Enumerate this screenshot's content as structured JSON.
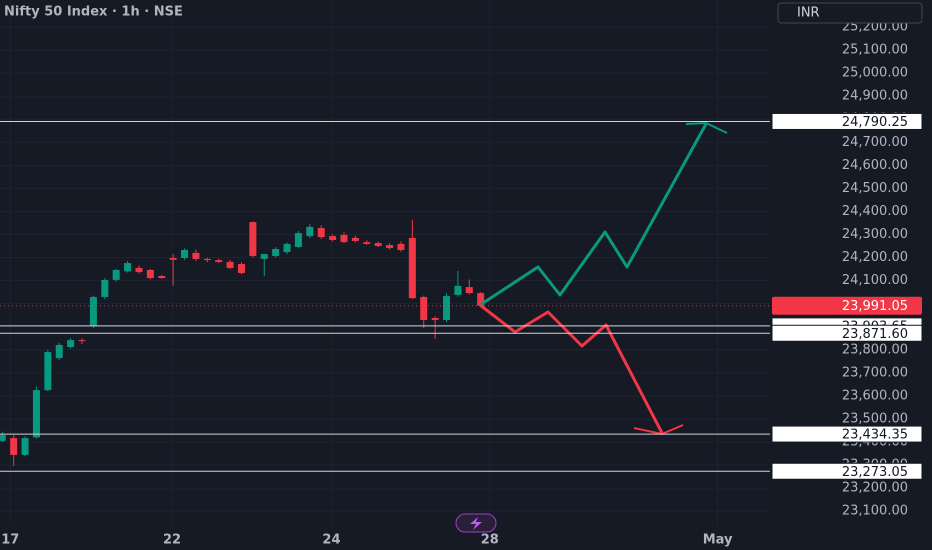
{
  "chart_data": {
    "type": "candlestick",
    "title": "Nifty 50 Index · 1h · NSE",
    "currency": "INR",
    "x": [
      0,
      1,
      2,
      3,
      4,
      5,
      6,
      7,
      8,
      9,
      10,
      11,
      12,
      13,
      14,
      15,
      16,
      17,
      18,
      19,
      20,
      21,
      22,
      23,
      24,
      25,
      26,
      27,
      28,
      29,
      30,
      31,
      32,
      33,
      34,
      35,
      36,
      37,
      38,
      39,
      40,
      41,
      42
    ],
    "open": [
      23405,
      23417,
      23344,
      23420,
      23625,
      23764,
      23812,
      23842,
      23903,
      24029,
      24103,
      24140,
      24155,
      24146,
      24120,
      24198,
      24198,
      24220,
      24194,
      24189,
      24181,
      24172,
      24354,
      24194,
      24207,
      24224,
      24246,
      24293,
      24328,
      24293,
      24298,
      24285,
      24267,
      24263,
      24254,
      24259,
      24285,
      24029,
      23938,
      23929,
      24038,
      24072,
      24046
    ],
    "high": [
      23445,
      23430,
      23425,
      23640,
      23800,
      23830,
      23850,
      23850,
      24035,
      24110,
      24150,
      24185,
      24165,
      24150,
      24125,
      24215,
      24240,
      24235,
      24200,
      24195,
      24190,
      24180,
      24356,
      24215,
      24245,
      24265,
      24315,
      24345,
      24340,
      24300,
      24310,
      24295,
      24275,
      24270,
      24262,
      24270,
      24363,
      24035,
      23945,
      24045,
      24142,
      24105,
      24050
    ],
    "low": [
      23400,
      23296,
      23338,
      23415,
      23620,
      23755,
      23805,
      23825,
      23894,
      24020,
      24095,
      24135,
      24130,
      24105,
      24108,
      24077,
      24190,
      24185,
      24180,
      24175,
      24150,
      24128,
      24200,
      24120,
      24200,
      24215,
      24240,
      24285,
      24280,
      24270,
      24262,
      24265,
      24255,
      24245,
      24235,
      24225,
      24020,
      23894,
      23847,
      23920,
      24030,
      24040,
      23985
    ],
    "close": [
      23430,
      23344,
      23417,
      23625,
      23790,
      23821,
      23842,
      23838,
      24029,
      24103,
      24146,
      24176,
      24137,
      24111,
      24111,
      24190,
      24233,
      24194,
      24189,
      24181,
      24155,
      24133,
      24207,
      24215,
      24237,
      24259,
      24306,
      24333,
      24289,
      24276,
      24267,
      24272,
      24259,
      24250,
      24241,
      24233,
      24024,
      23929,
      23929,
      24033,
      24077,
      24046,
      23991.05
    ],
    "up_color": "#089981",
    "down_color": "#f23645",
    "xlim": [
      -0.2,
      67.4
    ],
    "xticks": [
      {
        "value": 0.7,
        "label": "17"
      },
      {
        "value": 14.9,
        "label": "22"
      },
      {
        "value": 28.9,
        "label": "24"
      },
      {
        "value": 42.8,
        "label": "28"
      },
      {
        "value": 62.8,
        "label": "May"
      }
    ],
    "ylim": [
      23040,
      25317
    ],
    "yticks": [
      {
        "value": 25200,
        "label": "25,200.00"
      },
      {
        "value": 25100,
        "label": "25,100.00"
      },
      {
        "value": 25000,
        "label": "25,000.00"
      },
      {
        "value": 24900,
        "label": "24,900.00"
      },
      {
        "value": 24800,
        "label": "24,800.00"
      },
      {
        "value": 24700,
        "label": "24,700.00"
      },
      {
        "value": 24600,
        "label": "24,600.00"
      },
      {
        "value": 24500,
        "label": "24,500.00"
      },
      {
        "value": 24400,
        "label": "24,400.00"
      },
      {
        "value": 24300,
        "label": "24,300.00"
      },
      {
        "value": 24200,
        "label": "24,200.00"
      },
      {
        "value": 24100,
        "label": "24,100.00"
      },
      {
        "value": 24000,
        "label": "24,000.00"
      },
      {
        "value": 23900,
        "label": "23,900.00"
      },
      {
        "value": 23800,
        "label": "23,800.00"
      },
      {
        "value": 23700,
        "label": "23,700.00"
      },
      {
        "value": 23600,
        "label": "23,600.00"
      },
      {
        "value": 23500,
        "label": "23,500.00"
      },
      {
        "value": 23400,
        "label": "23,400.00"
      },
      {
        "value": 23300,
        "label": "23,300.00"
      },
      {
        "value": 23200,
        "label": "23,200.00"
      },
      {
        "value": 23100,
        "label": "23,100.00"
      }
    ],
    "grid": true,
    "levels": [
      {
        "value": 24790.25,
        "label": "24,790.25"
      },
      {
        "value": 23903.65,
        "label": "23,903.65"
      },
      {
        "value": 23871.6,
        "label": "23,871.60"
      },
      {
        "value": 23434.35,
        "label": "23,434.35"
      },
      {
        "value": 23273.05,
        "label": "23,273.05"
      }
    ],
    "current_price": {
      "value": 23991.05,
      "label": "23,991.05"
    }
  }
}
